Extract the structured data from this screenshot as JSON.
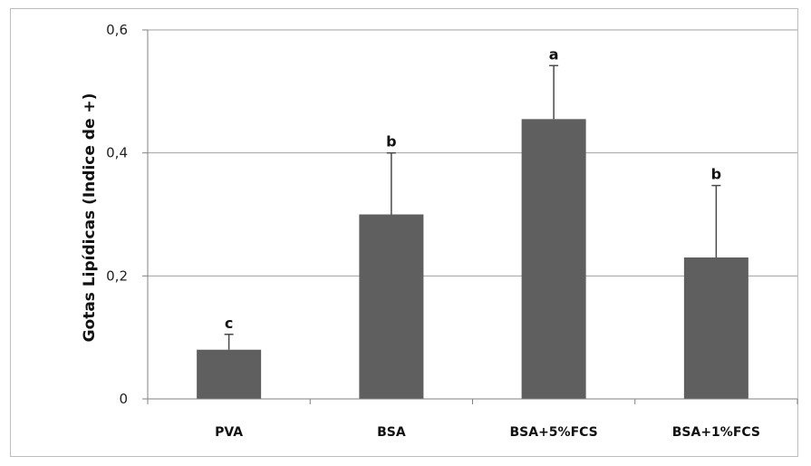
{
  "chart_data": {
    "type": "bar",
    "ylabel": "Gotas Lipídicas (Indice de +)",
    "categories": [
      "PVA",
      "BSA",
      "BSA+5%FCS",
      "BSA+1%FCS"
    ],
    "values": [
      0.08,
      0.3,
      0.455,
      0.23
    ],
    "error_plus": [
      0.025,
      0.1,
      0.087,
      0.117
    ],
    "significance_letters": [
      "c",
      "b",
      "a",
      "b"
    ],
    "ylim": [
      0,
      0.6
    ],
    "yticks": [
      {
        "value": 0,
        "label": "0"
      },
      {
        "value": 0.2,
        "label": "0,2"
      },
      {
        "value": 0.4,
        "label": "0,4"
      },
      {
        "value": 0.6,
        "label": "0,6"
      }
    ],
    "grid": true,
    "bar_color": "#5f5f5f",
    "grid_color": "#a0a0a0"
  }
}
